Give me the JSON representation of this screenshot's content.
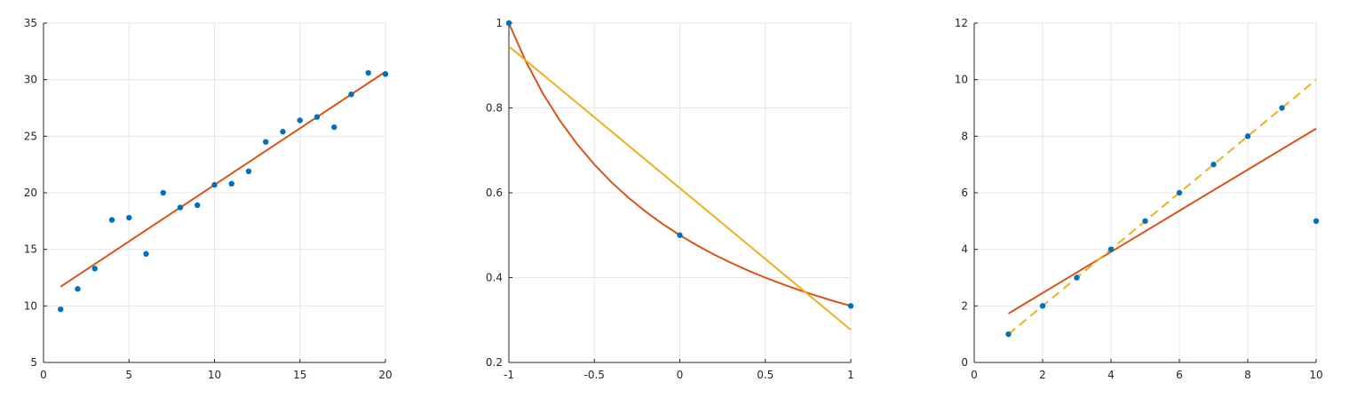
{
  "chart_data": [
    {
      "type": "scatter",
      "title": "",
      "xlabel": "",
      "ylabel": "",
      "xlim": [
        0,
        20
      ],
      "ylim": [
        5,
        35
      ],
      "xticks": [
        0,
        5,
        10,
        15,
        20
      ],
      "yticks": [
        5,
        10,
        15,
        20,
        25,
        30,
        35
      ],
      "xtick_labels": [
        "0",
        "5",
        "10",
        "15",
        "20"
      ],
      "ytick_labels": [
        "5",
        "10",
        "15",
        "20",
        "25",
        "30",
        "35"
      ],
      "grid": true,
      "series": [
        {
          "kind": "points",
          "color": "#0072BD",
          "x": [
            1,
            2,
            3,
            4,
            5,
            6,
            7,
            8,
            9,
            10,
            11,
            12,
            13,
            14,
            15,
            16,
            17,
            18,
            19,
            20
          ],
          "y": [
            9.7,
            11.5,
            13.3,
            17.6,
            17.8,
            14.6,
            20.0,
            18.7,
            18.9,
            20.7,
            20.8,
            21.9,
            24.5,
            25.4,
            26.4,
            26.7,
            25.8,
            28.7,
            30.6,
            30.5
          ]
        },
        {
          "kind": "line",
          "color": "#D95319",
          "dash": false,
          "x": [
            1,
            20
          ],
          "y": [
            11.7,
            30.7
          ]
        }
      ]
    },
    {
      "type": "scatter",
      "title": "",
      "xlabel": "",
      "ylabel": "",
      "xlim": [
        -1,
        1
      ],
      "ylim": [
        0.2,
        1
      ],
      "xticks": [
        -1,
        -0.5,
        0,
        0.5,
        1
      ],
      "yticks": [
        0.2,
        0.4,
        0.6,
        0.8,
        1
      ],
      "xtick_labels": [
        "-1",
        "-0.5",
        "0",
        "0.5",
        "1"
      ],
      "ytick_labels": [
        "0.2",
        "0.4",
        "0.6",
        "0.8",
        "1"
      ],
      "grid": true,
      "series": [
        {
          "kind": "points",
          "color": "#0072BD",
          "x": [
            -1,
            0,
            1
          ],
          "y": [
            1.0,
            0.5,
            0.3333
          ]
        },
        {
          "kind": "line",
          "color": "#D95319",
          "dash": false,
          "x": [
            -1,
            -0.9,
            -0.8,
            -0.7,
            -0.6,
            -0.5,
            -0.4,
            -0.3,
            -0.2,
            -0.1,
            0,
            0.1,
            0.2,
            0.3,
            0.4,
            0.5,
            0.6,
            0.7,
            0.8,
            0.9,
            1
          ],
          "y": [
            1.0,
            0.9091,
            0.8333,
            0.7692,
            0.7143,
            0.6667,
            0.625,
            0.5882,
            0.5556,
            0.5263,
            0.5,
            0.4762,
            0.4545,
            0.4348,
            0.4167,
            0.4,
            0.3846,
            0.3704,
            0.3571,
            0.3448,
            0.3333
          ]
        },
        {
          "kind": "line",
          "color": "#EDB120",
          "dash": false,
          "x": [
            -1,
            1
          ],
          "y": [
            0.945,
            0.277
          ]
        }
      ]
    },
    {
      "type": "scatter",
      "title": "",
      "xlabel": "",
      "ylabel": "",
      "xlim": [
        0,
        10
      ],
      "ylim": [
        0,
        12
      ],
      "xticks": [
        0,
        2,
        4,
        6,
        8,
        10
      ],
      "yticks": [
        0,
        2,
        4,
        6,
        8,
        10,
        12
      ],
      "xtick_labels": [
        "0",
        "2",
        "4",
        "6",
        "8",
        "10"
      ],
      "ytick_labels": [
        "0",
        "2",
        "4",
        "6",
        "8",
        "10",
        "12"
      ],
      "grid": true,
      "series": [
        {
          "kind": "points",
          "color": "#0072BD",
          "x": [
            1,
            2,
            3,
            4,
            5,
            6,
            7,
            8,
            9,
            10
          ],
          "y": [
            1,
            2,
            3,
            4,
            5,
            6,
            7,
            8,
            9,
            5
          ]
        },
        {
          "kind": "line",
          "color": "#D95319",
          "dash": false,
          "x": [
            1,
            10
          ],
          "y": [
            1.73,
            8.27
          ]
        },
        {
          "kind": "line",
          "color": "#EDB120",
          "dash": true,
          "x": [
            1,
            10
          ],
          "y": [
            1,
            10
          ]
        }
      ]
    }
  ]
}
